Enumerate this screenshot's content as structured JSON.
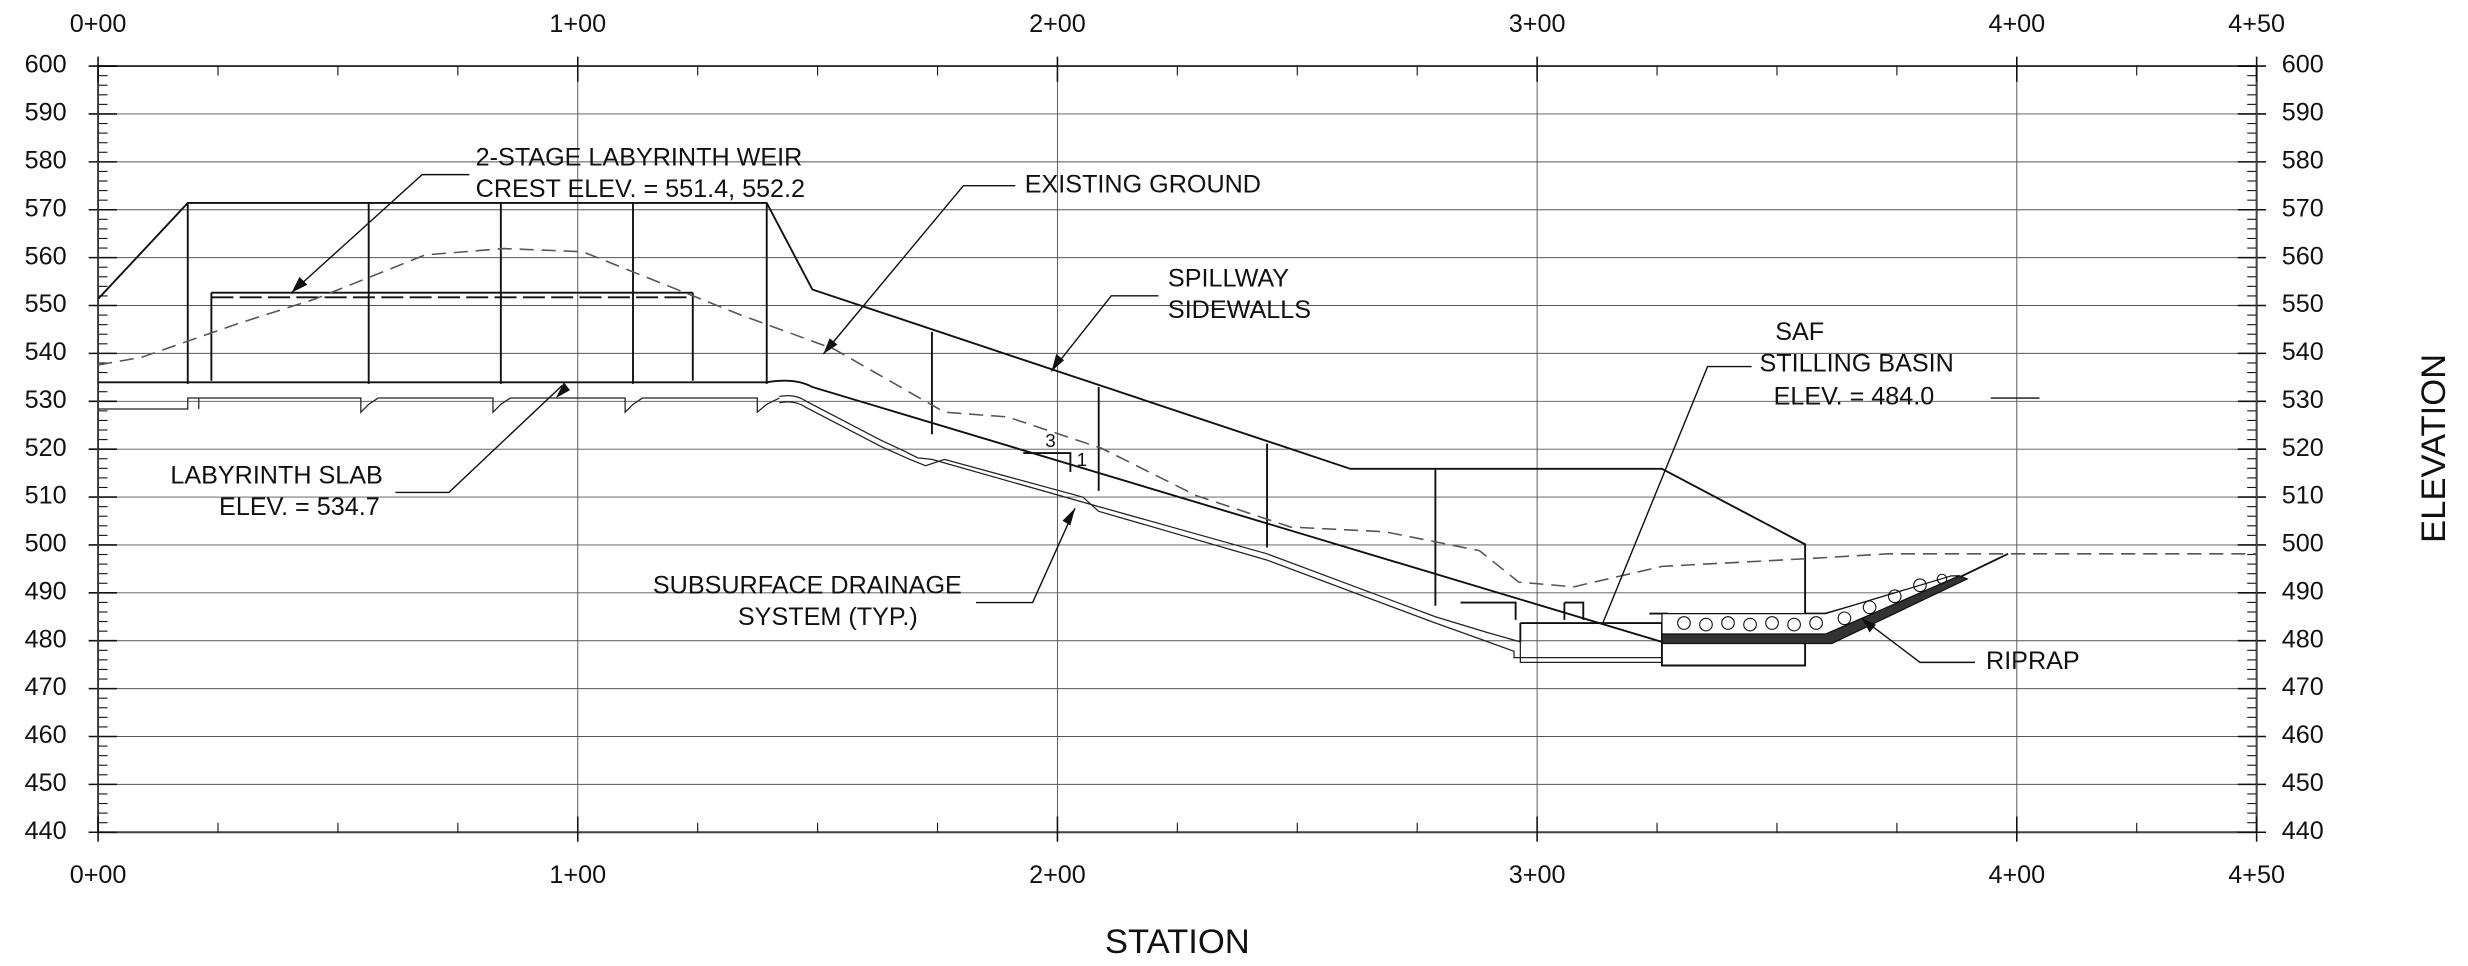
{
  "profile": {
    "xlabel": "STATION",
    "ylabel": "ELEVATION",
    "xlim": [
      0,
      450
    ],
    "xticks": [
      {
        "value": 0,
        "label": "0+00"
      },
      {
        "value": 100,
        "label": "1+00"
      },
      {
        "value": 200,
        "label": "2+00"
      },
      {
        "value": 300,
        "label": "3+00"
      },
      {
        "value": 400,
        "label": "4+00"
      },
      {
        "value": 450,
        "label": "4+50"
      }
    ],
    "ylim": [
      440,
      600
    ],
    "yticks": [
      440,
      450,
      460,
      470,
      480,
      490,
      500,
      510,
      520,
      530,
      540,
      550,
      560,
      570,
      580,
      590,
      600
    ],
    "grid": true,
    "annotations": {
      "weir": [
        "2-STAGE LABYRINTH WEIR",
        "CREST ELEV. = 551.4, 552.2"
      ],
      "ground": [
        "EXISTING GROUND"
      ],
      "sidewalls": [
        "SPILLWAY",
        "SIDEWALLS"
      ],
      "basin": [
        "SAF",
        "STILLING BASIN",
        "ELEV. = 484.0"
      ],
      "slab": [
        "LABYRINTH SLAB",
        "ELEV. = 534.7"
      ],
      "drainage": [
        "SUBSURFACE DRAINAGE",
        "SYSTEM (TYP.)"
      ],
      "riprap": [
        "RIPRAP"
      ],
      "slope": [
        "3",
        "1"
      ]
    }
  }
}
